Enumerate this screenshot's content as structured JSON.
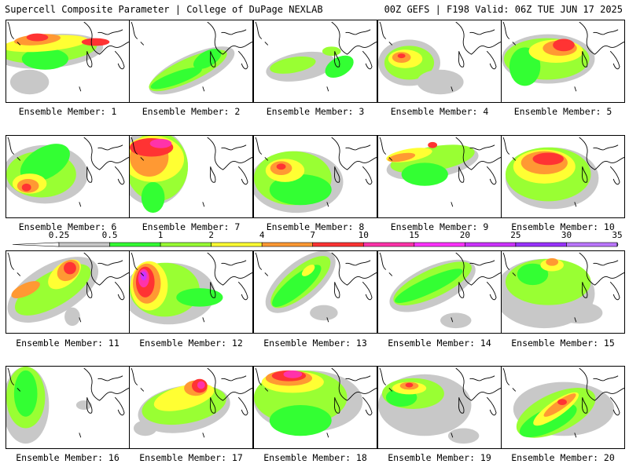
{
  "header": {
    "left": "Supercell Composite Parameter | College of DuPage NEXLAB",
    "right": "00Z GEFS | F198 Valid: 06Z TUE JUN 17 2025"
  },
  "legend": {
    "labels": [
      "0.25",
      "0.5",
      "1",
      "2",
      "4",
      "7",
      "10",
      "15",
      "20",
      "25",
      "30",
      "35"
    ],
    "colors": [
      "#c8c8c8",
      "#33ff33",
      "#99ff33",
      "#ffff33",
      "#ff9933",
      "#ff3333",
      "#ff33aa",
      "#ff33ff",
      "#cc33ff",
      "#9933ff",
      "#bb77ff",
      "#33ffff"
    ]
  },
  "colors": {
    "gray": "#c8c8c8",
    "lightgreen": "#99ff33",
    "green": "#33ff33",
    "yellow": "#ffff33",
    "orange": "#ff9933",
    "red": "#ff3333",
    "magenta": "#ff33aa",
    "purple": "#cc33ff"
  },
  "panels": [
    {
      "label": "Ensemble Member: 1"
    },
    {
      "label": "Ensemble Member: 2"
    },
    {
      "label": "Ensemble Member: 3"
    },
    {
      "label": "Ensemble Member: 4"
    },
    {
      "label": "Ensemble Member: 5"
    },
    {
      "label": "Ensemble Member: 6"
    },
    {
      "label": "Ensemble Member: 7"
    },
    {
      "label": "Ensemble Member: 8"
    },
    {
      "label": "Ensemble Member: 9"
    },
    {
      "label": "Ensemble Member: 10"
    },
    {
      "label": "Ensemble Member: 11"
    },
    {
      "label": "Ensemble Member: 12"
    },
    {
      "label": "Ensemble Member: 13"
    },
    {
      "label": "Ensemble Member: 14"
    },
    {
      "label": "Ensemble Member: 15"
    },
    {
      "label": "Ensemble Member: 16"
    },
    {
      "label": "Ensemble Member: 17"
    },
    {
      "label": "Ensemble Member: 18"
    },
    {
      "label": "Ensemble Member: 19"
    },
    {
      "label": "Ensemble Member: 20"
    }
  ]
}
